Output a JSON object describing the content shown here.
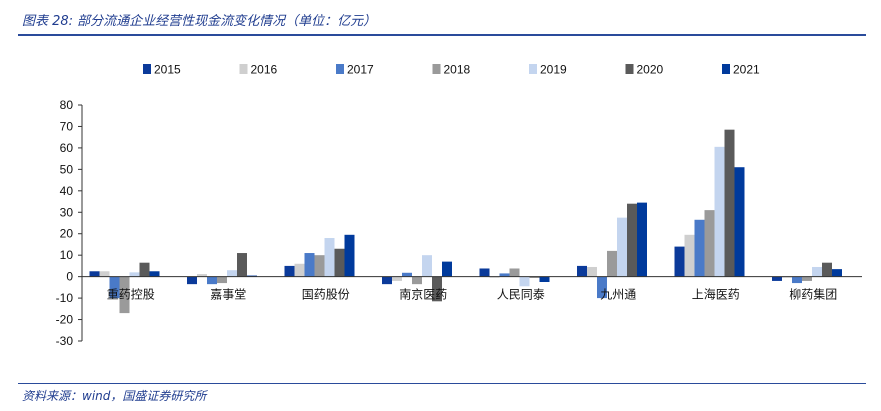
{
  "header": {
    "title": "图表 28:  部分流通企业经营性现金流变化情况（单位：亿元）"
  },
  "footer": {
    "source": "资料来源：wind，国盛证券研究所"
  },
  "chart_data": {
    "type": "bar",
    "categories": [
      "重药控股",
      "嘉事堂",
      "国药股份",
      "南京医药",
      "人民同泰",
      "九州通",
      "上海医药",
      "柳药集团"
    ],
    "series": [
      {
        "name": "2015",
        "color": "#0b3a9a",
        "values": [
          2.5,
          -3.5,
          5,
          -3.5,
          3.8,
          5,
          14,
          -2
        ]
      },
      {
        "name": "2016",
        "color": "#cfcfcf",
        "values": [
          2.5,
          1.2,
          6,
          -2,
          -0.5,
          4.5,
          19.5,
          -0.5
        ]
      },
      {
        "name": "2017",
        "color": "#4a7ac8",
        "values": [
          -10,
          -3.5,
          11,
          1.8,
          1.5,
          -10,
          26.5,
          -3
        ]
      },
      {
        "name": "2018",
        "color": "#9a9a9a",
        "values": [
          -17,
          -3,
          10,
          -3.5,
          3.8,
          12,
          31,
          -2
        ]
      },
      {
        "name": "2019",
        "color": "#c4d5ef",
        "values": [
          2,
          3,
          18,
          10,
          -4.5,
          27.5,
          60.5,
          4.5
        ]
      },
      {
        "name": "2020",
        "color": "#5a5a5a",
        "values": [
          6.5,
          11,
          13,
          -11.5,
          -0.5,
          34,
          68.5,
          6.5
        ]
      },
      {
        "name": "2021",
        "color": "#003a9c",
        "values": [
          2.5,
          0.5,
          19.5,
          7,
          -2.5,
          34.5,
          51,
          3.5
        ]
      }
    ],
    "yticks": [
      80,
      70,
      60,
      50,
      40,
      30,
      20,
      10,
      0,
      -10,
      -20,
      -30
    ],
    "ylim": [
      -30,
      80
    ],
    "legend_position": "top",
    "grid": false
  }
}
